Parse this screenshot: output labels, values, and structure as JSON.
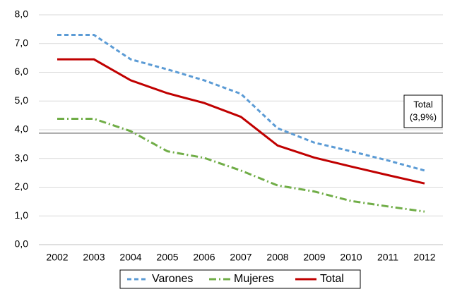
{
  "chart_data": {
    "type": "line",
    "categories": [
      "2002",
      "2003",
      "2004",
      "2005",
      "2006",
      "2007",
      "2008",
      "2009",
      "2010",
      "2011",
      "2012"
    ],
    "series": [
      {
        "name": "Varones",
        "color": "#5b9bd5",
        "dash": "dashed",
        "values": [
          7.3,
          7.3,
          6.45,
          6.1,
          5.72,
          5.25,
          4.05,
          3.55,
          3.25,
          2.93,
          2.58
        ]
      },
      {
        "name": "Mujeres",
        "color": "#70ad47",
        "dash": "dash-dot",
        "values": [
          4.38,
          4.38,
          3.95,
          3.25,
          3.02,
          2.58,
          2.06,
          1.85,
          1.52,
          1.33,
          1.15
        ]
      },
      {
        "name": "Total",
        "color": "#c00000",
        "dash": "solid",
        "values": [
          6.45,
          6.45,
          5.72,
          5.27,
          4.93,
          4.45,
          3.45,
          3.03,
          2.72,
          2.42,
          2.13
        ]
      }
    ],
    "reference_line": {
      "value": 3.88,
      "color": "#a6a6a6",
      "label": [
        "Total",
        "(3,9%)"
      ]
    },
    "ylim": [
      0,
      8
    ],
    "yticks": [
      {
        "value": 0,
        "label": "0,0"
      },
      {
        "value": 1,
        "label": "1,0"
      },
      {
        "value": 2,
        "label": "2,0"
      },
      {
        "value": 3,
        "label": "3,0"
      },
      {
        "value": 4,
        "label": "4,0"
      },
      {
        "value": 5,
        "label": "5,0"
      },
      {
        "value": 6,
        "label": "6,0"
      },
      {
        "value": 7,
        "label": "7,0"
      },
      {
        "value": 8,
        "label": "8,0"
      }
    ],
    "grid": true,
    "legend": "bottom"
  }
}
